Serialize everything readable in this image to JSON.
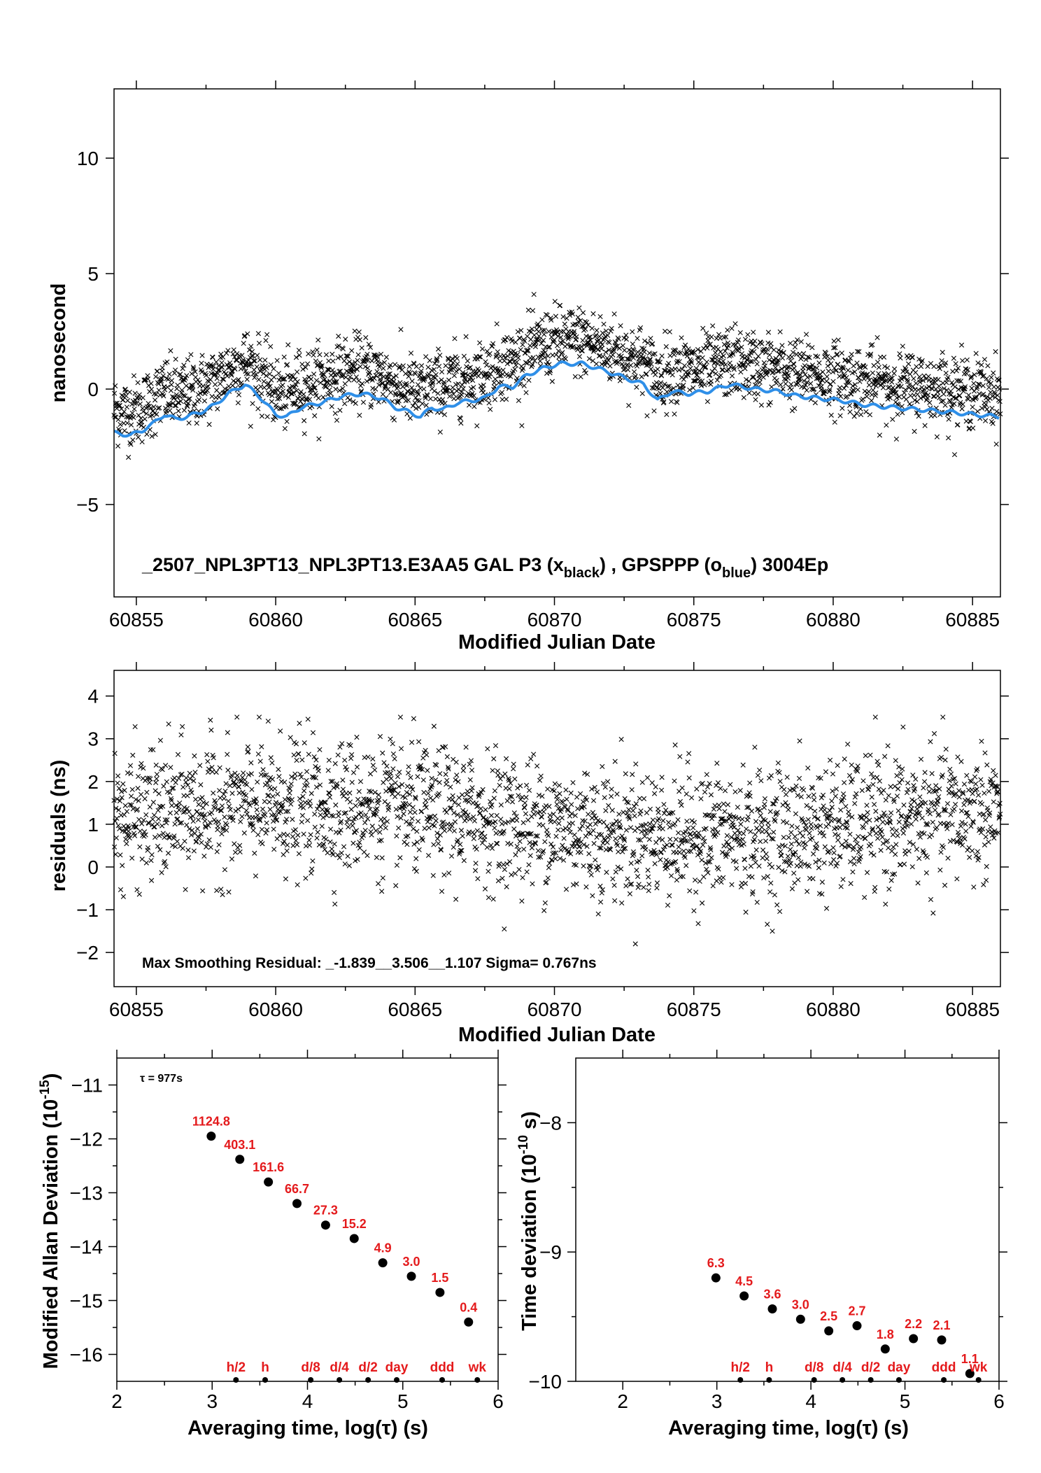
{
  "chart_data": [
    {
      "id": "phase",
      "type": "scatter",
      "xlabel": "Modified Julian Date",
      "ylabel": "nanosecond",
      "xlim": [
        60854.2,
        60886.0
      ],
      "ylim": [
        -9.0,
        13.0
      ],
      "xticks": [
        "60855",
        "60860",
        "60865",
        "60870",
        "60875",
        "60880",
        "60885"
      ],
      "yticks": [
        "−5",
        "0",
        "5",
        "10"
      ],
      "annotation": {
        "prefix": "_2507_NPL3PT13_NPL3PT13.E3AA5      GAL P3 (x",
        "sub1": "black",
        "mid": ") ,  GPSPPP (o",
        "sub2": "blue",
        "suffix": ")  3004Ep"
      },
      "series": [
        {
          "marker": "x",
          "color": "#000000",
          "noise_ns": 0.75,
          "offset_from_blue_ns": 1.0
        },
        {
          "marker": "line",
          "color": "#2f8fe8",
          "x": [
            60854.2,
            60854.8,
            60855.2,
            60855.6,
            60856.0,
            60856.4,
            60856.8,
            60857.3,
            60857.8,
            60858.3,
            60858.9,
            60859.4,
            60860.0,
            60860.4,
            60860.9,
            60861.6,
            60862.4,
            60863.1,
            60863.8,
            60864.3,
            60864.8,
            60865.2,
            60865.6,
            60866.0,
            60866.5,
            60867.0,
            60867.5,
            60868.0,
            60868.5,
            60869.0,
            60869.6,
            60870.2,
            60871.0,
            60871.8,
            60872.5,
            60873.2,
            60873.7,
            60874.2,
            60874.8,
            60875.5,
            60876.3,
            60877.2,
            60878.0,
            60878.7,
            60879.5,
            60880.3,
            60881.2,
            60882.2,
            60883.2,
            60884.2,
            60885.0,
            60886.0
          ],
          "y": [
            -1.9,
            -2.0,
            -1.8,
            -1.5,
            -1.1,
            -1.3,
            -1.2,
            -1.0,
            -0.7,
            -0.2,
            0.2,
            -0.3,
            -1.1,
            -1.2,
            -0.8,
            -0.6,
            -0.3,
            -0.2,
            -0.4,
            -0.8,
            -1.0,
            -1.2,
            -0.8,
            -0.9,
            -0.6,
            -0.5,
            -0.4,
            0.1,
            0.1,
            0.6,
            0.9,
            1.1,
            1.1,
            0.8,
            0.5,
            0.2,
            -0.5,
            -0.1,
            -0.2,
            -0.1,
            0.2,
            0.0,
            -0.1,
            -0.3,
            -0.4,
            -0.5,
            -0.7,
            -0.8,
            -0.9,
            -1.0,
            -1.1,
            -1.2
          ]
        }
      ]
    },
    {
      "id": "residuals",
      "type": "scatter",
      "xlabel": "Modified Julian Date",
      "ylabel": "residuals (ns)",
      "xlim": [
        60854.2,
        60886.0
      ],
      "ylim": [
        -2.8,
        4.6
      ],
      "xticks": [
        "60855",
        "60860",
        "60865",
        "60870",
        "60875",
        "60880",
        "60885"
      ],
      "yticks": [
        "−2",
        "−1",
        "0",
        "1",
        "2",
        "3",
        "4"
      ],
      "annotation": "Max Smoothing Residual: _-1.839__3.506__1.107  Sigma= 0.767ns",
      "series": [
        {
          "marker": "x",
          "color": "#000000",
          "mean_ns": 1.1,
          "sigma_ns": 0.767,
          "min_ns": -1.839,
          "max_ns": 3.506
        }
      ]
    },
    {
      "id": "mdev",
      "type": "scatter",
      "xlabel": "Averaging time, log(τ) (s)",
      "ylabel": "Modified Allan Deviation (10",
      "ylabel_sup": "-15",
      "ylabel_end": ")",
      "tau_note": "τ = 977s",
      "xlim": [
        2,
        6
      ],
      "ylim": [
        -16.5,
        -10.5
      ],
      "xticks": [
        "2",
        "3",
        "4",
        "5",
        "6"
      ],
      "yticks": [
        "−16",
        "−15",
        "−14",
        "−13",
        "−12",
        "−11"
      ],
      "points": {
        "x": [
          2.99,
          3.29,
          3.59,
          3.89,
          4.19,
          4.49,
          4.79,
          5.09,
          5.39,
          5.69
        ],
        "y": [
          -11.95,
          -12.38,
          -12.8,
          -13.2,
          -13.6,
          -13.85,
          -14.3,
          -14.55,
          -14.85,
          -15.4
        ],
        "labels": [
          "1124.8",
          "403.1",
          "161.6",
          "66.7",
          "27.3",
          "15.2",
          "4.9",
          "3.0",
          "1.5",
          "0.4"
        ]
      },
      "markers": {
        "x": [
          3.25,
          3.556,
          4.034,
          4.335,
          4.636,
          4.936,
          5.413,
          5.782
        ],
        "labels": [
          "h/2",
          "h",
          "d/8",
          "d/4",
          "d/2",
          "day",
          "ddd",
          "wk"
        ]
      }
    },
    {
      "id": "tdev",
      "type": "scatter",
      "xlabel": "Averaging time, log(τ) (s)",
      "ylabel": "Time deviation (10",
      "ylabel_sup": "-10",
      "ylabel_end": " s)",
      "xlim": [
        1.5,
        6
      ],
      "ylim": [
        -10,
        -7.5
      ],
      "xticks": [
        "2",
        "3",
        "4",
        "5",
        "6"
      ],
      "yticks": [
        "−10",
        "−9",
        "−8"
      ],
      "points": {
        "x": [
          2.99,
          3.29,
          3.59,
          3.89,
          4.19,
          4.49,
          4.79,
          5.09,
          5.39,
          5.69
        ],
        "y": [
          -9.2,
          -9.34,
          -9.44,
          -9.52,
          -9.61,
          -9.57,
          -9.75,
          -9.67,
          -9.68,
          -9.94
        ],
        "labels": [
          "6.3",
          "4.5",
          "3.6",
          "3.0",
          "2.5",
          "2.7",
          "1.8",
          "2.2",
          "2.1",
          "1.1"
        ]
      },
      "markers": {
        "x": [
          3.25,
          3.556,
          4.034,
          4.335,
          4.636,
          4.936,
          5.413,
          5.782
        ],
        "labels": [
          "h/2",
          "h",
          "d/8",
          "d/4",
          "d/2",
          "day",
          "ddd",
          "wk"
        ]
      }
    }
  ]
}
